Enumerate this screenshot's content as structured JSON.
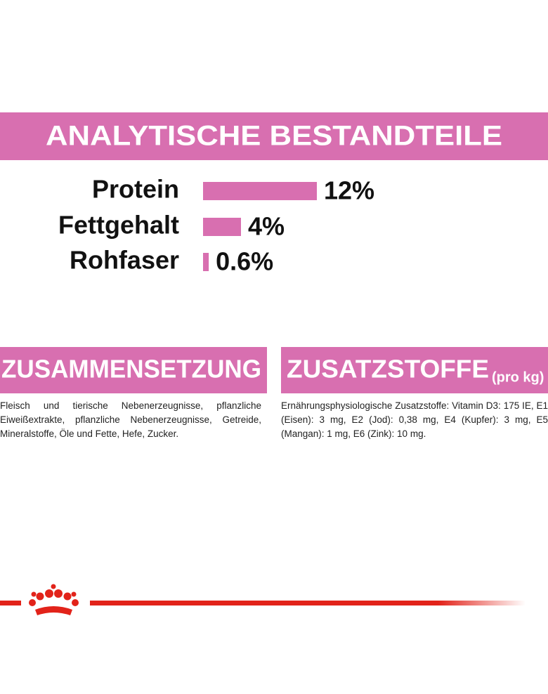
{
  "chart_data": {
    "type": "bar",
    "title": "ANALYTISCHE BESTANDTEILE",
    "categories": [
      "Protein",
      "Fettgehalt",
      "Rohfaser"
    ],
    "values": [
      12,
      4,
      0.6
    ],
    "value_labels": [
      "12%",
      "4%",
      "0.6%"
    ],
    "color": "#d86fb0"
  },
  "sections": [
    {
      "title": "ZUSAMMENSETZUNG",
      "text": "Fleisch und tierische Nebenerzeugnisse, pflanzliche Eiweißextrakte, pflanzliche Nebenerzeugnisse, Getreide, Mineralstoffe, Öle und Fette, Hefe, Zucker."
    },
    {
      "title": "ZUSATZSTOFFE",
      "note": "(pro kg)",
      "text": "Ernährungsphysiologische Zusatzstoffe: Vitamin D3: 175 IE, E1 (Eisen): 3 mg, E2 (Jod): 0,38 mg, E4 (Kupfer): 3 mg, E5 (Mangan): 1 mg, E6 (Zink): 10 mg."
    }
  ]
}
